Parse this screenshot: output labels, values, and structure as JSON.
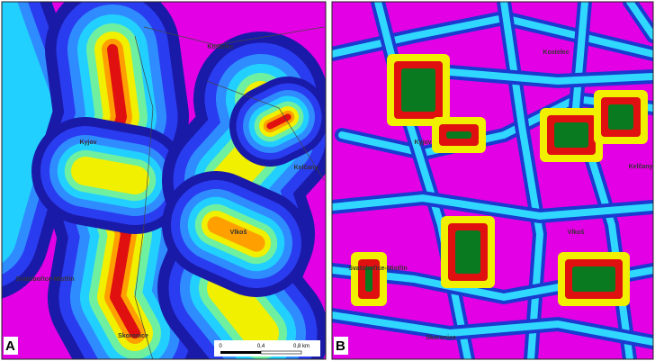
{
  "panel_a": {
    "label": "A",
    "places": [
      "Kostelec",
      "Kyjov",
      "Kelčany",
      "Vlkoš",
      "Svatobořice-Mistřín",
      "Skoronice"
    ],
    "scale_bar": {
      "labels": [
        "0",
        "0,4",
        "0,8 km"
      ]
    }
  },
  "panel_b": {
    "label": "B",
    "places": [
      "Kostelec",
      "Kyjov",
      "Kelčany",
      "Vlkoš",
      "Svatobořice-Mistřín",
      "Skoronice"
    ]
  }
}
